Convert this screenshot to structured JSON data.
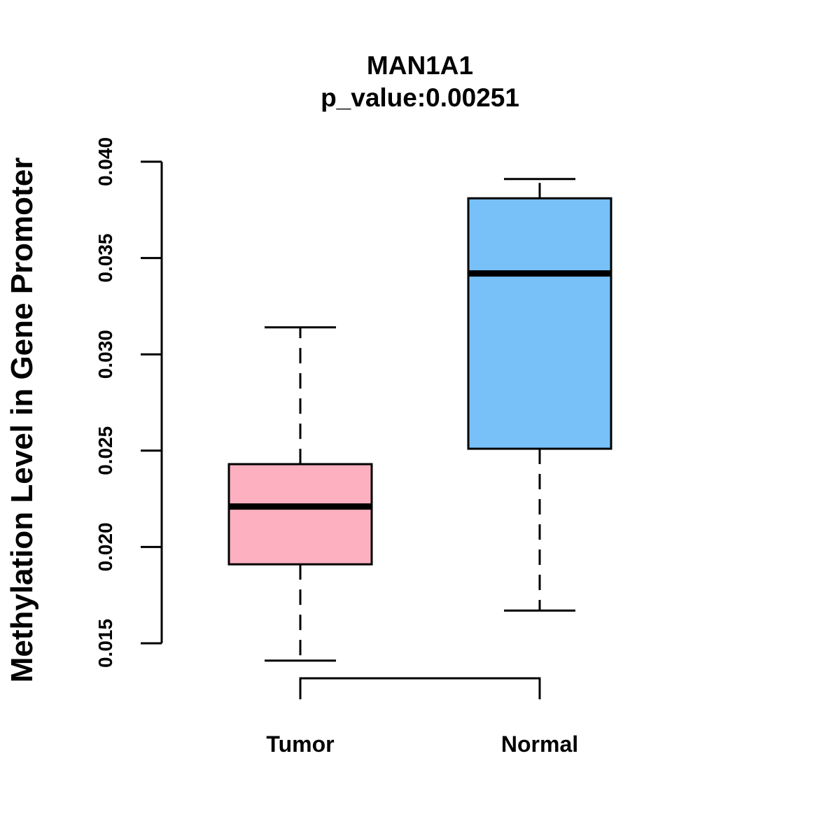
{
  "chart_data": {
    "type": "box",
    "title": "MAN1A1",
    "subtitle": "p_value:0.00251",
    "xlabel": "",
    "ylabel": "Methylation Level in Gene Promoter",
    "ylim": [
      0.015,
      0.04
    ],
    "yticks": [
      0.015,
      0.02,
      0.025,
      0.03,
      0.035,
      0.04
    ],
    "ytick_labels": [
      "0.015",
      "0.020",
      "0.025",
      "0.030",
      "0.035",
      "0.040"
    ],
    "categories": [
      "Tumor",
      "Normal"
    ],
    "boxes": [
      {
        "name": "Tumor",
        "whisker_low": 0.0141,
        "q1": 0.0191,
        "median": 0.0221,
        "q3": 0.0243,
        "whisker_high": 0.0314,
        "color": "#FDB0C0"
      },
      {
        "name": "Normal",
        "whisker_low": 0.0167,
        "q1": 0.0251,
        "median": 0.0342,
        "q3": 0.0381,
        "whisker_high": 0.0391,
        "color": "#78C1F8"
      }
    ],
    "comparison_bracket": [
      "Tumor",
      "Normal"
    ]
  }
}
